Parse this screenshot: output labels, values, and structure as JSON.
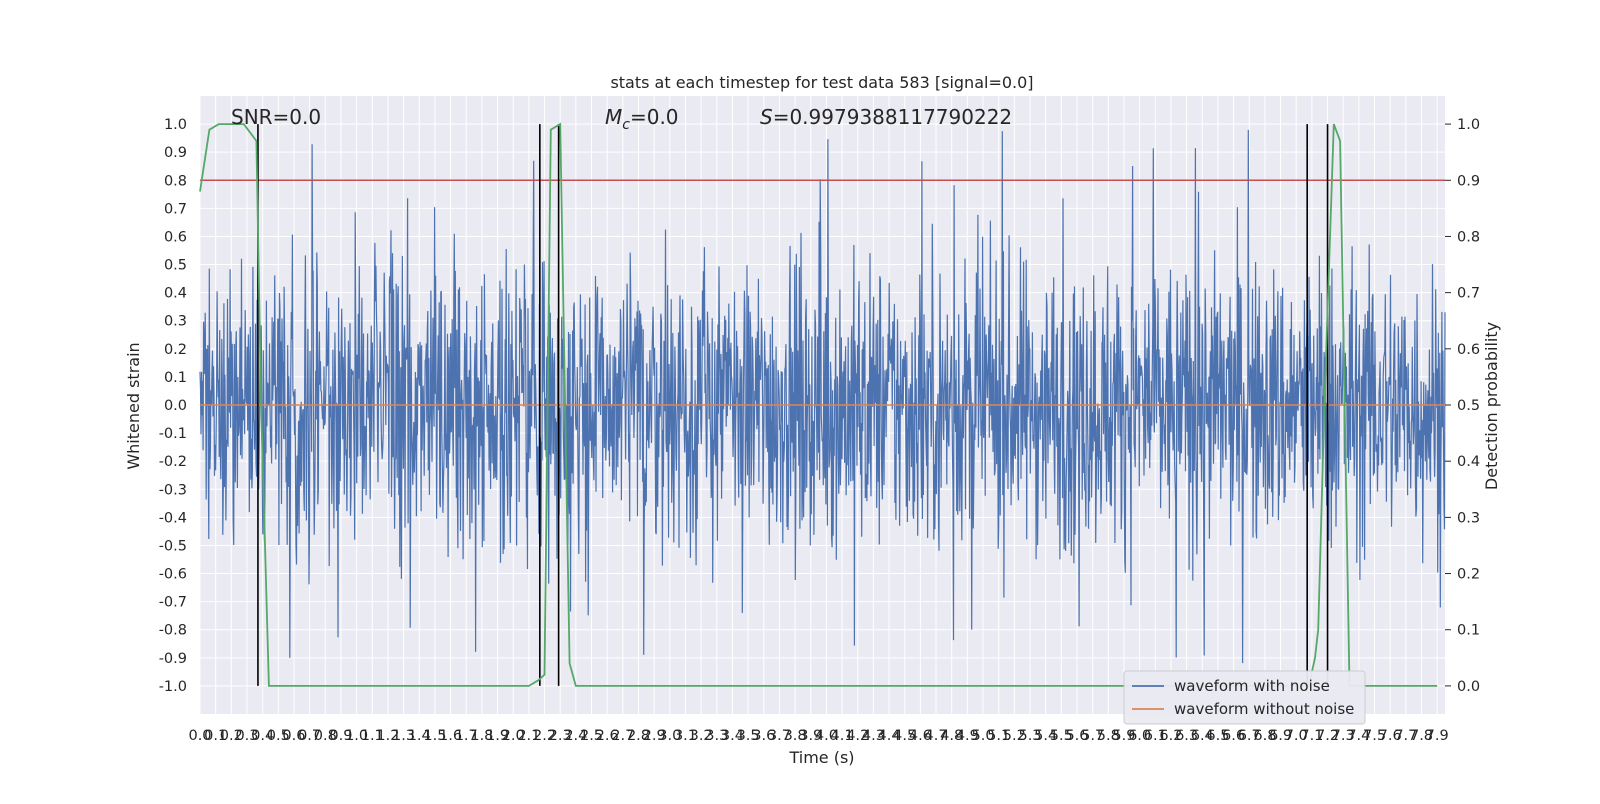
{
  "chart_data": {
    "type": "line",
    "title": "stats at each timestep for test data 583 [signal=0.0]",
    "xlabel": "Time (s)",
    "ylabel": "Whitened strain",
    "y2label": "Detection probability",
    "xlim": [
      0,
      7.95
    ],
    "ylim": [
      -1.1,
      1.1
    ],
    "y2lim": [
      -0.05,
      1.05
    ],
    "x_ticks": [
      0.0,
      0.1,
      0.2,
      0.3,
      0.4,
      0.5,
      0.6,
      0.7,
      0.8,
      0.9,
      1.0,
      1.1,
      1.2,
      1.3,
      1.4,
      1.5,
      1.6,
      1.7,
      1.8,
      1.9,
      2.0,
      2.1,
      2.2,
      2.3,
      2.4,
      2.5,
      2.6,
      2.7,
      2.8,
      2.9,
      3.0,
      3.1,
      3.2,
      3.3,
      3.4,
      3.5,
      3.6,
      3.7,
      3.8,
      3.9,
      4.0,
      4.1,
      4.2,
      4.3,
      4.4,
      4.5,
      4.6,
      4.7,
      4.8,
      4.9,
      5.0,
      5.1,
      5.2,
      5.3,
      5.4,
      5.5,
      5.6,
      5.7,
      5.8,
      5.9,
      6.0,
      6.1,
      6.2,
      6.3,
      6.4,
      6.5,
      6.6,
      6.7,
      6.8,
      6.9,
      7.0,
      7.1,
      7.2,
      7.3,
      7.4,
      7.5,
      7.6,
      7.7,
      7.8,
      7.9
    ],
    "y_ticks": [
      1.0,
      0.9,
      0.8,
      0.7,
      0.6,
      0.5,
      0.4,
      0.3,
      0.2,
      0.1,
      0.0,
      -0.1,
      -0.2,
      -0.3,
      -0.4,
      -0.5,
      -0.6,
      -0.7,
      -0.8,
      -0.9,
      -1.0
    ],
    "y2_ticks": [
      1.0,
      0.9,
      0.8,
      0.7,
      0.6,
      0.5,
      0.4,
      0.3,
      0.2,
      0.1,
      0.0
    ],
    "threshold": 0.9,
    "series": [
      {
        "name": "waveform with noise",
        "color": "#4c72b0",
        "kind": "noise",
        "amplitude_typical": 0.45,
        "amplitude_peak": 1.0
      },
      {
        "name": "waveform without noise",
        "color": "#dd8452",
        "values": [
          0.0
        ]
      },
      {
        "color": "#55a868",
        "axis": "right",
        "x": [
          0.0,
          0.06,
          0.12,
          0.28,
          0.36,
          0.39,
          0.44,
          0.5,
          2.1,
          2.16,
          2.2,
          2.24,
          2.3,
          2.36,
          2.4,
          7.08,
          7.12,
          7.14,
          7.18,
          7.24,
          7.28,
          7.34,
          7.44,
          7.9
        ],
        "values": [
          0.88,
          0.99,
          1.0,
          1.0,
          0.97,
          0.5,
          0.0,
          0.0,
          0.0,
          0.01,
          0.02,
          0.99,
          1.0,
          0.04,
          0.0,
          0.0,
          0.05,
          0.1,
          0.5,
          1.0,
          0.97,
          0.0,
          0.0,
          0.0
        ]
      },
      {
        "color": "#c44e52",
        "axis": "right",
        "kind": "hline",
        "values": [
          0.9
        ]
      }
    ],
    "vlines": [
      0.37,
      2.17,
      2.29,
      7.07,
      7.2
    ],
    "grid": true,
    "legend": "bottom-right",
    "annotations": {
      "snr": "SNR=0.0",
      "mc_prefix": "M",
      "mc_sub": "c",
      "mc_rest": "=0.0",
      "s_prefix": "S",
      "s_rest": "=0.9979388117790222"
    }
  }
}
